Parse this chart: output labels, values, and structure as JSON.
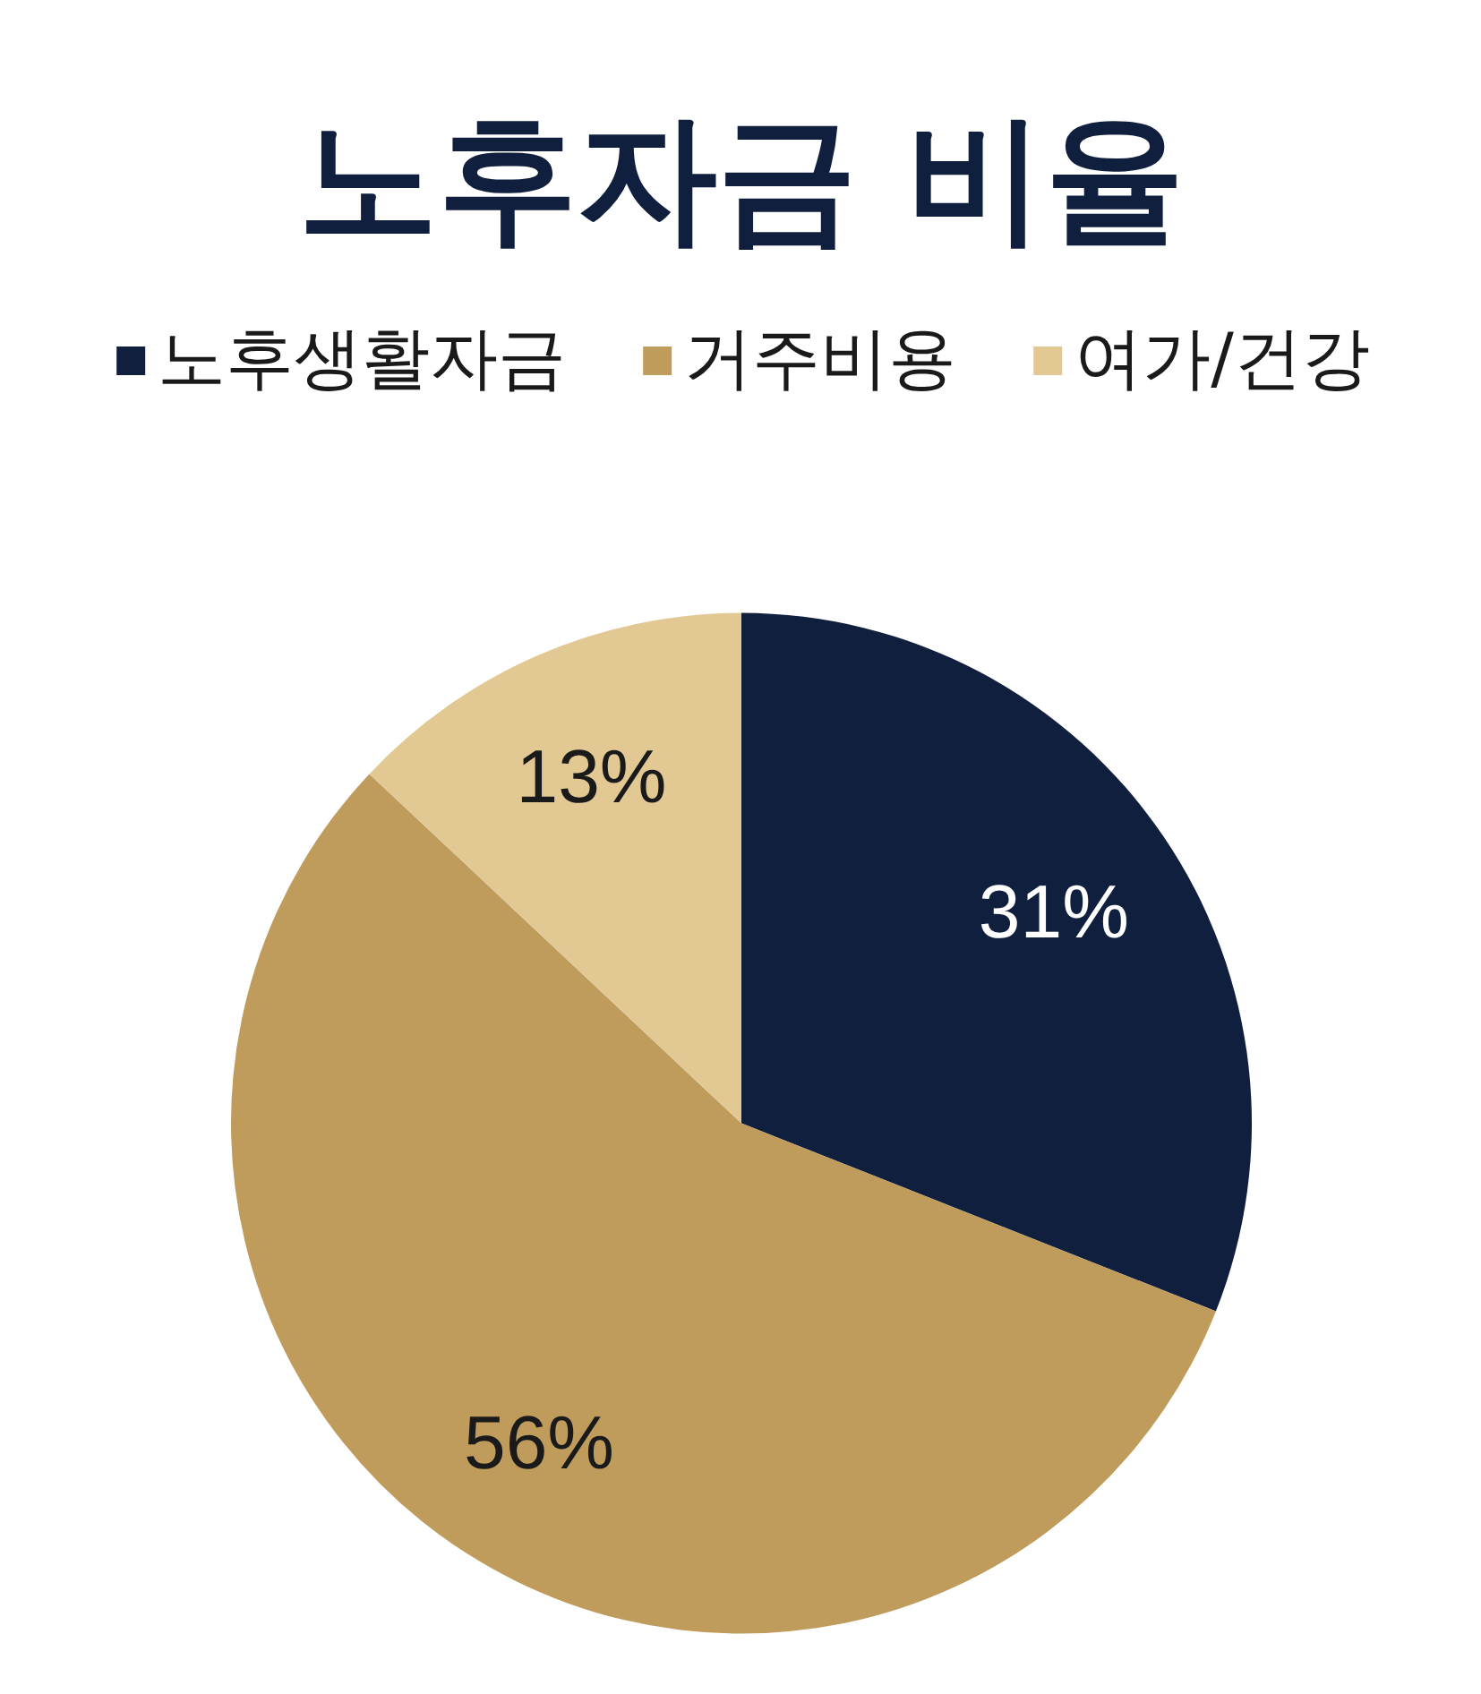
{
  "chart_data": {
    "type": "pie",
    "title": "노후자금 비율",
    "categories": [
      "노후생활자금",
      "거주비용",
      "여가/건강"
    ],
    "values": [
      31,
      56,
      13
    ],
    "colors": [
      "#0f1f3d",
      "#c09c5c",
      "#e2c993"
    ],
    "value_labels": [
      "31%",
      "56%",
      "13%"
    ],
    "legend": "top"
  }
}
